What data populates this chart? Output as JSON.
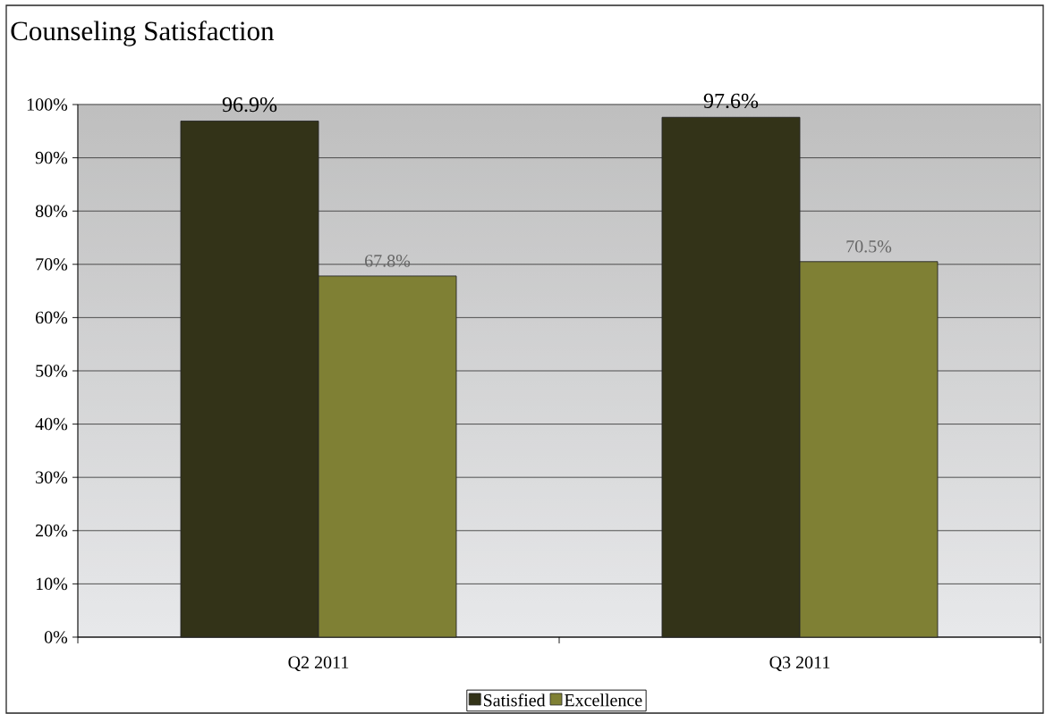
{
  "chart_data": {
    "type": "bar",
    "title": "Counseling Satisfaction",
    "categories": [
      "Q2 2011",
      "Q3 2011"
    ],
    "series": [
      {
        "name": "Satisfied",
        "color": "#333318",
        "values": [
          96.9,
          97.6
        ],
        "value_labels": [
          "96.9%",
          "97.6%"
        ]
      },
      {
        "name": "Excellence",
        "color": "#7f8034",
        "values": [
          67.8,
          70.5
        ],
        "value_labels": [
          "67.8%",
          "70.5%"
        ]
      }
    ],
    "ylim": [
      0,
      100
    ],
    "yticks": [
      {
        "value": 0,
        "label": "0%"
      },
      {
        "value": 10,
        "label": "10%"
      },
      {
        "value": 20,
        "label": "20%"
      },
      {
        "value": 30,
        "label": "30%"
      },
      {
        "value": 40,
        "label": "40%"
      },
      {
        "value": 50,
        "label": "50%"
      },
      {
        "value": 60,
        "label": "60%"
      },
      {
        "value": 70,
        "label": "70%"
      },
      {
        "value": 80,
        "label": "80%"
      },
      {
        "value": 90,
        "label": "90%"
      },
      {
        "value": 100,
        "label": "100%"
      }
    ],
    "grid": "y",
    "legend": "bottom"
  }
}
